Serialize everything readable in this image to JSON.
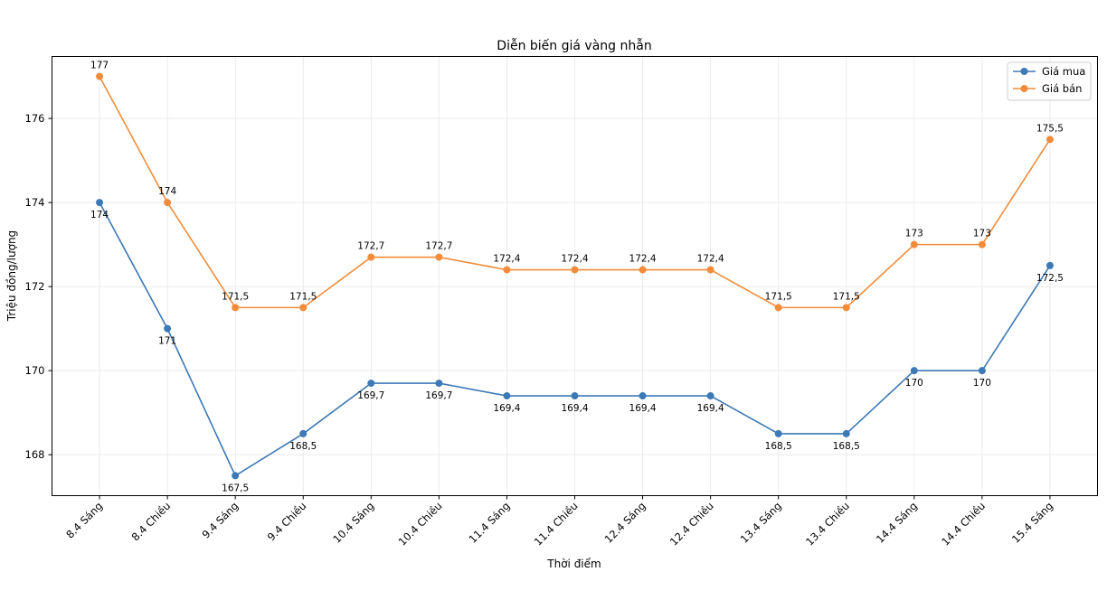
{
  "chart_data": {
    "type": "line",
    "title": "Diễn biến giá vàng nhẫn",
    "xlabel": "Thời điểm",
    "ylabel": "Triệu đồng/lượng",
    "categories": [
      "8.4 Sáng",
      "8.4 Chiều",
      "9.4 Sáng",
      "9.4 Chiều",
      "10.4 Sáng",
      "10.4 Chiều",
      "11.4 Sáng",
      "11.4 Chiều",
      "12.4 Sáng",
      "12.4 Chiều",
      "13.4 Sáng",
      "13.4 Chiều",
      "14.4 Sáng",
      "14.4 Chiều",
      "15.4 Sáng"
    ],
    "series": [
      {
        "name": "Giá mua",
        "color": "#3d79b5",
        "values": [
          174,
          171,
          167.5,
          168.5,
          169.7,
          169.7,
          169.4,
          169.4,
          169.4,
          169.4,
          168.5,
          168.5,
          170,
          170,
          172.5
        ]
      },
      {
        "name": "Giá bán",
        "color": "#f28c3a",
        "values": [
          177,
          174,
          171.5,
          171.5,
          172.7,
          172.7,
          172.4,
          172.4,
          172.4,
          172.4,
          171.5,
          171.5,
          173,
          173,
          175.5
        ]
      }
    ],
    "yticks": [
      168,
      170,
      172,
      174,
      176
    ],
    "ylim": [
      167.025,
      177.475
    ],
    "grid": true,
    "legend": "top-right",
    "data_labels": true,
    "decimal_separator": ","
  }
}
